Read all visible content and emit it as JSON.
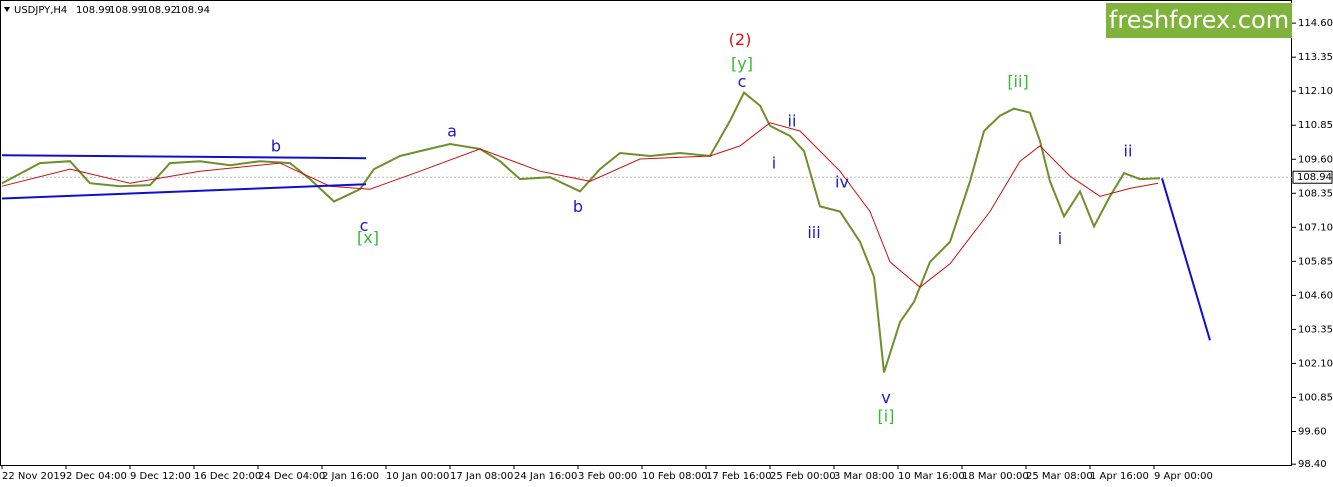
{
  "chart_data": {
    "type": "line",
    "symbol": "USDJPY,H4",
    "ohlc": [
      108.99,
      108.99,
      108.92,
      108.94
    ],
    "current_price": 108.94,
    "logo": "freshforex.com",
    "xlim": [
      0,
      645
    ],
    "ylim": [
      98.37,
      115.45
    ],
    "yticks": [
      {
        "value": 114.6,
        "label": "114.60"
      },
      {
        "value": 113.35,
        "label": "113.35"
      },
      {
        "value": 112.1,
        "label": "112.10"
      },
      {
        "value": 110.85,
        "label": "110.85"
      },
      {
        "value": 109.6,
        "label": "109.60"
      },
      {
        "value": 108.35,
        "label": "108.35"
      },
      {
        "value": 107.1,
        "label": "107.10"
      },
      {
        "value": 105.85,
        "label": "105.85"
      },
      {
        "value": 104.6,
        "label": "104.60"
      },
      {
        "value": 103.35,
        "label": "103.35"
      },
      {
        "value": 102.1,
        "label": "102.10"
      },
      {
        "value": 100.85,
        "label": "100.85"
      },
      {
        "value": 99.6,
        "label": "99.60"
      },
      {
        "value": 98.4,
        "label": "98.40"
      }
    ],
    "xticks": [
      {
        "value": 0,
        "label": "22 Nov 2019"
      },
      {
        "value": 32,
        "label": "2 Dec 04:00"
      },
      {
        "value": 64,
        "label": "9 Dec 12:00"
      },
      {
        "value": 96,
        "label": "16 Dec 20:00"
      },
      {
        "value": 128,
        "label": "24 Dec 04:00"
      },
      {
        "value": 160,
        "label": "2 Jan 16:00"
      },
      {
        "value": 192,
        "label": "10 Jan 00:00"
      },
      {
        "value": 224,
        "label": "17 Jan 08:00"
      },
      {
        "value": 256,
        "label": "24 Jan 16:00"
      },
      {
        "value": 288,
        "label": "3 Feb 00:00"
      },
      {
        "value": 320,
        "label": "10 Feb 08:00"
      },
      {
        "value": 352,
        "label": "17 Feb 16:00"
      },
      {
        "value": 384,
        "label": "25 Feb 00:00"
      },
      {
        "value": 416,
        "label": "3 Mar 08:00"
      },
      {
        "value": 448,
        "label": "10 Mar 16:00"
      },
      {
        "value": 480,
        "label": "18 Mar 00:00"
      },
      {
        "value": 512,
        "label": "25 Mar 08:00"
      },
      {
        "value": 544,
        "label": "1 Apr 16:00"
      },
      {
        "value": 576,
        "label": "9 Apr 00:00"
      }
    ],
    "series": [
      {
        "color": "#6f8f2a",
        "x": [
          0,
          19,
          34,
          44,
          59,
          74,
          84,
          99,
          114,
          129,
          144,
          154,
          166,
          179,
          186,
          199,
          209,
          224,
          239,
          249,
          259,
          274,
          289,
          299,
          309,
          324,
          339,
          354,
          364,
          371,
          379,
          384,
          394,
          401,
          409,
          419,
          429,
          436,
          441,
          449,
          456,
          464,
          474,
          484,
          491,
          499,
          506,
          514,
          519,
          524,
          531,
          539,
          546,
          554,
          561,
          569,
          579
        ],
        "values": [
          108.72,
          109.46,
          109.53,
          108.72,
          108.61,
          108.65,
          109.46,
          109.53,
          109.38,
          109.53,
          109.46,
          108.87,
          108.05,
          108.5,
          109.24,
          109.72,
          109.9,
          110.16,
          109.98,
          109.53,
          108.87,
          108.94,
          108.42,
          109.24,
          109.83,
          109.72,
          109.83,
          109.72,
          111.01,
          112.05,
          111.57,
          110.83,
          110.46,
          109.9,
          107.87,
          107.68,
          106.57,
          105.28,
          101.77,
          103.62,
          104.36,
          105.83,
          106.57,
          108.79,
          110.64,
          111.2,
          111.46,
          111.31,
          110.27,
          108.79,
          107.5,
          108.42,
          107.13,
          108.24,
          109.09,
          108.87,
          108.9
        ]
      },
      {
        "color": "#cc1010",
        "x": [
          0,
          34,
          64,
          99,
          139,
          164,
          184,
          209,
          239,
          269,
          294,
          319,
          354,
          369,
          384,
          399,
          419,
          434,
          444,
          459,
          474,
          494,
          509,
          519,
          534,
          549,
          564,
          578
        ],
        "values": [
          108.61,
          109.24,
          108.72,
          109.16,
          109.46,
          108.61,
          108.5,
          109.16,
          109.98,
          109.16,
          108.79,
          109.61,
          109.72,
          110.09,
          110.94,
          110.64,
          109.16,
          107.68,
          105.83,
          104.9,
          105.76,
          107.68,
          109.53,
          110.09,
          108.98,
          108.24,
          108.53,
          108.72
        ]
      },
      {
        "color": "#1010cc",
        "x": [
          0,
          182
        ],
        "values": [
          109.75,
          109.64
        ]
      },
      {
        "color": "#1010cc",
        "x": [
          0,
          182
        ],
        "values": [
          108.16,
          108.68
        ]
      },
      {
        "color": "#1010cc",
        "x": [
          580,
          604
        ],
        "values": [
          108.9,
          102.95
        ]
      }
    ],
    "annotations": [
      {
        "text": "(2)",
        "color": "#e01010",
        "x": 369,
        "y": 113.97
      },
      {
        "text": "[y]",
        "color": "#33bb33",
        "x": 370,
        "y": 113.08
      },
      {
        "text": "c",
        "color": "#1a1acc",
        "x": 370,
        "y": 112.42
      },
      {
        "text": "ii",
        "color": "#1a1acc",
        "x": 395,
        "y": 110.97
      },
      {
        "text": "i",
        "color": "#1a1acc",
        "x": 386,
        "y": 109.42
      },
      {
        "text": "iv",
        "color": "#1a1acc",
        "x": 420,
        "y": 108.72
      },
      {
        "text": "iii",
        "color": "#1a1acc",
        "x": 406,
        "y": 106.87
      },
      {
        "text": "v",
        "color": "#1a1acc",
        "x": 442,
        "y": 100.81
      },
      {
        "text": "[i]",
        "color": "#33bb33",
        "x": 442,
        "y": 100.14
      },
      {
        "text": "[ii]",
        "color": "#33bb33",
        "x": 508,
        "y": 112.42
      },
      {
        "text": "ii",
        "color": "#1a1acc",
        "x": 563,
        "y": 109.87
      },
      {
        "text": "i",
        "color": "#1a1acc",
        "x": 529,
        "y": 106.65
      },
      {
        "text": "b",
        "color": "#1a1acc",
        "x": 137,
        "y": 110.05
      },
      {
        "text": "a",
        "color": "#1a1acc",
        "x": 225,
        "y": 110.61
      },
      {
        "text": "b",
        "color": "#1a1acc",
        "x": 288,
        "y": 107.83
      },
      {
        "text": "c",
        "color": "#1a1acc",
        "x": 181,
        "y": 107.13
      },
      {
        "text": "[x]",
        "color": "#33bb33",
        "x": 183,
        "y": 106.69
      }
    ]
  }
}
